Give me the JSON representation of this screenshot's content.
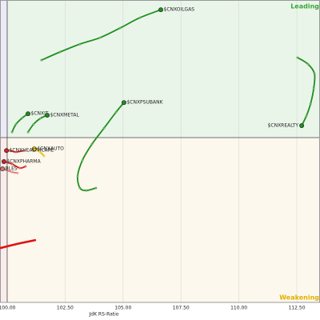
{
  "chart_data": {
    "type": "line",
    "x_label": "JdK RS-Ratio",
    "quadrant_labels": [
      "Leading",
      "Weakening"
    ],
    "xlim": [
      99.69,
      113.5
    ],
    "ylim": [
      92.08,
      106.62
    ],
    "xticks": [
      {
        "value": 100,
        "label": "100.00"
      },
      {
        "value": 102.5,
        "label": "102.50"
      },
      {
        "value": 105,
        "label": "105.00"
      },
      {
        "value": 107.5,
        "label": "107.50"
      },
      {
        "value": 110,
        "label": "110.00"
      },
      {
        "value": 112.5,
        "label": "112.50"
      }
    ],
    "grid": true,
    "series": [
      {
        "name": "$CNXOILGAS",
        "color": "#1f8f1f",
        "x": [
          101.48,
          102.28,
          103.14,
          104.01,
          104.87,
          105.73,
          106.63
        ],
        "y": [
          103.73,
          104.12,
          104.5,
          104.81,
          105.27,
          105.77,
          106.15
        ]
      },
      {
        "name": "$CNXREALTY",
        "color": "#1f8f1f",
        "x": [
          112.53,
          112.98,
          113.26,
          113.23,
          113.09,
          112.91,
          112.71
        ],
        "y": [
          103.85,
          103.54,
          103.08,
          102.38,
          101.62,
          101.04,
          100.58
        ]
      },
      {
        "name": "$CNXPSUBANK",
        "color": "#1f8f1f",
        "x": [
          103.83,
          103.42,
          103.14,
          103.04,
          103.25,
          103.66,
          104.18,
          104.7,
          105.04
        ],
        "y": [
          97.58,
          97.46,
          97.58,
          98.15,
          98.92,
          99.69,
          100.46,
          101.23,
          101.69
        ]
      },
      {
        "name": "$CNXIT",
        "color": "#1f8f1f",
        "x": [
          100.21,
          100.38,
          100.66,
          100.9
        ],
        "y": [
          100.27,
          100.65,
          100.96,
          101.15
        ]
      },
      {
        "name": "$CNXMETAL",
        "color": "#1f8f1f",
        "x": [
          100.9,
          101.14,
          101.42,
          101.73
        ],
        "y": [
          100.27,
          100.65,
          100.92,
          101.08
        ]
      },
      {
        "name": "$CNXAUTO",
        "color": "#e0c000",
        "x": [
          101.59,
          101.42,
          101.24,
          101.17
        ],
        "y": [
          99.12,
          99.31,
          99.46,
          99.46
        ]
      },
      {
        "name": "$CNXHEALTHCARE",
        "color": "#d42020",
        "x": [
          100.73,
          100.38,
          100.1,
          99.97
        ],
        "y": [
          99.38,
          99.31,
          99.38,
          99.38
        ]
      },
      {
        "name": "$CNXPHARMA",
        "color": "#d42020",
        "x": [
          100.79,
          100.55,
          100.21,
          99.86
        ],
        "y": [
          98.62,
          98.54,
          98.73,
          98.85
        ]
      },
      {
        "name": "BLES",
        "color": "#e07070",
        "x": [
          100.45,
          100.2,
          99.8
        ],
        "y": [
          98.3,
          98.35,
          98.5
        ]
      },
      {
        "name": null,
        "color": "#e01010",
        "x": [
          101.24,
          100.38,
          99.69
        ],
        "y": [
          95.08,
          94.88,
          94.69
        ]
      }
    ]
  }
}
